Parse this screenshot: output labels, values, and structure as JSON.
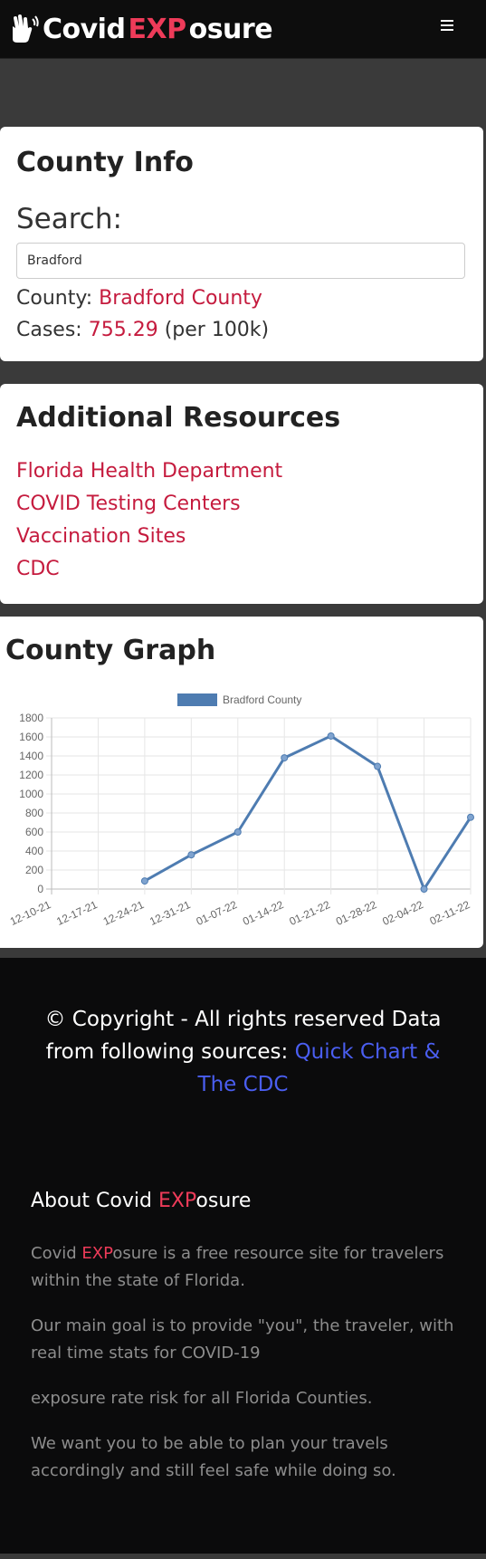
{
  "nav": {
    "brand_prefix": "Covid ",
    "brand_accent": "EXP",
    "brand_suffix": "osure",
    "logo_icon": "hands-icon",
    "menu_icon": "hamburger-menu-icon"
  },
  "county_info": {
    "title": "County Info",
    "search_label": "Search:",
    "search_value": "Bradford",
    "county_label": "County: ",
    "county_value": "Bradford County",
    "cases_label": "Cases: ",
    "cases_value": "755.29",
    "cases_unit": " (per 100k)"
  },
  "resources": {
    "title": "Additional Resources",
    "links": [
      "Florida Health Department",
      "COVID Testing Centers",
      "Vaccination Sites",
      "CDC"
    ]
  },
  "graph": {
    "title": "County Graph"
  },
  "chart_data": {
    "type": "line",
    "title": "",
    "legend": "Bradford County",
    "legend_position": "top",
    "categories": [
      "12-10-21",
      "12-17-21",
      "12-24-21",
      "12-31-21",
      "01-07-22",
      "01-14-22",
      "01-21-22",
      "01-28-22",
      "02-04-22",
      "02-11-22"
    ],
    "series": [
      {
        "name": "Bradford County",
        "values": [
          null,
          null,
          85,
          360,
          600,
          1380,
          1610,
          1290,
          0,
          755
        ]
      }
    ],
    "ylim": [
      0,
      1800
    ],
    "yticks": [
      0,
      200,
      400,
      600,
      800,
      1000,
      1200,
      1400,
      1600,
      1800
    ],
    "grid": true,
    "color": "#4e7cb1"
  },
  "footer": {
    "copyright_text": "© Copyright - All rights reserved Data from following sources: ",
    "sources_link": "Quick Chart & The CDC",
    "about_prefix": "About Covid ",
    "about_accent": "EXP",
    "about_suffix": "osure",
    "p1_prefix": "Covid ",
    "p1_accent": "EXP",
    "p1_suffix": "osure is a free resource site for travelers within the state of Florida.",
    "p2": "Our main goal is to provide \"you\", the traveler, with real time stats for COVID-19",
    "p3": "exposure rate risk for all Florida Counties.",
    "p4": "We want you to be able to plan your travels accordingly and still feel safe while doing so."
  }
}
